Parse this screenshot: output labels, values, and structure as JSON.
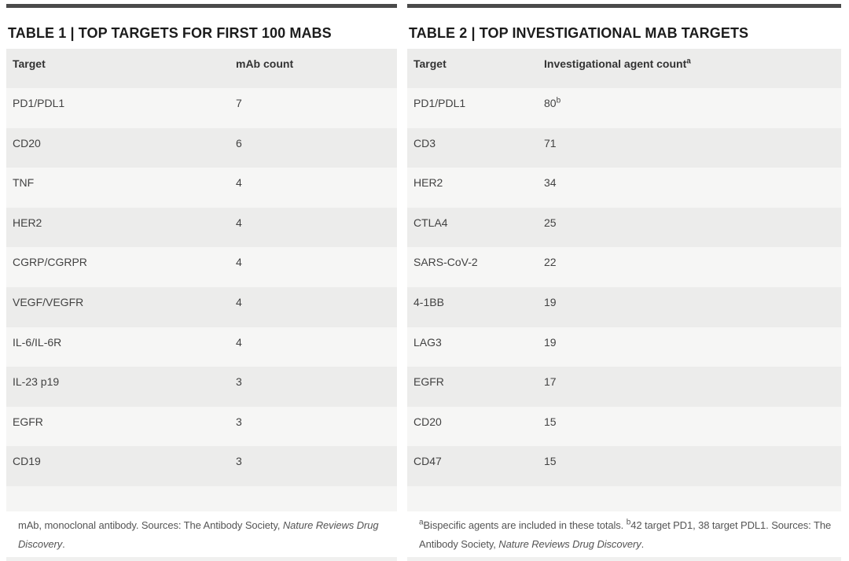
{
  "page": {
    "background": "#ffffff",
    "accent_bar_color": "#4a4a4a",
    "header_row_color": "#ececeb",
    "row_alt_color": "#f6f6f5"
  },
  "tables": [
    {
      "title": "TABLE 1 | TOP TARGETS FOR FIRST 100 MABS",
      "columns": [
        {
          "label": "Target"
        },
        {
          "label": "mAb count",
          "sup": ""
        }
      ],
      "rows": [
        {
          "target": "PD1/PDL1",
          "count": "7"
        },
        {
          "target": "CD20",
          "count": "6"
        },
        {
          "target": "TNF",
          "count": "4"
        },
        {
          "target": "HER2",
          "count": "4"
        },
        {
          "target": "CGRP/CGRPR",
          "count": "4"
        },
        {
          "target": "VEGF/VEGFR",
          "count": "4"
        },
        {
          "target": "IL-6/IL-6R",
          "count": "4"
        },
        {
          "target": "IL-23 p19",
          "count": "3"
        },
        {
          "target": "EGFR",
          "count": "3"
        },
        {
          "target": "CD19",
          "count": "3"
        }
      ],
      "footnote": [
        {
          "text": "mAb, monoclonal antibody. Sources: The Antibody Society, "
        },
        {
          "text": "Nature Reviews Drug Discovery",
          "italic": true
        },
        {
          "text": "."
        }
      ]
    },
    {
      "title": "TABLE 2 | TOP INVESTIGATIONAL MAB TARGETS",
      "columns": [
        {
          "label": "Target"
        },
        {
          "label": "Investigational agent count",
          "sup": "a"
        }
      ],
      "rows": [
        {
          "target": "PD1/PDL1",
          "count": "80",
          "sup": "b"
        },
        {
          "target": "CD3",
          "count": "71"
        },
        {
          "target": "HER2",
          "count": "34"
        },
        {
          "target": "CTLA4",
          "count": "25"
        },
        {
          "target": "SARS-CoV-2",
          "count": "22"
        },
        {
          "target": "4-1BB",
          "count": "19"
        },
        {
          "target": "LAG3",
          "count": "19"
        },
        {
          "target": "EGFR",
          "count": "17"
        },
        {
          "target": "CD20",
          "count": "15"
        },
        {
          "target": "CD47",
          "count": "15"
        }
      ],
      "footnote": [
        {
          "sup": "a"
        },
        {
          "text": "Bispecific agents are included in these totals. "
        },
        {
          "sup": "b"
        },
        {
          "text": "42 target PD1, 38 target PDL1. Sources: The Antibody Society, "
        },
        {
          "text": "Nature Reviews Drug Discovery",
          "italic": true
        },
        {
          "text": "."
        }
      ]
    }
  ]
}
